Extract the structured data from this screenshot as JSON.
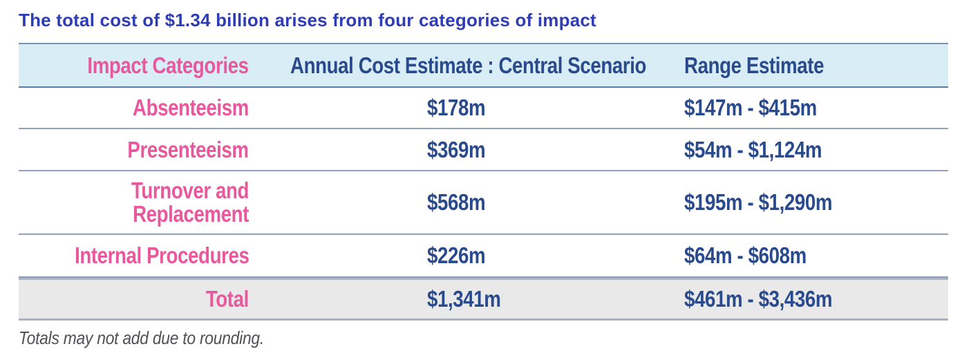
{
  "title": "The total cost of $1.34 billion arises from four categories of impact",
  "chart_data": {
    "type": "table",
    "title": "The total cost of $1.34 billion arises from four categories of impact",
    "columns": [
      "Impact Categories",
      "Annual Cost Estimate : Central Scenario",
      "Range Estimate"
    ],
    "rows": [
      [
        "Absenteeism",
        "$178m",
        "$147m - $415m"
      ],
      [
        "Presenteeism",
        "$369m",
        "$54m - $1,124m"
      ],
      [
        "Turnover and Replacement",
        "$568m",
        "$195m - $1,290m"
      ],
      [
        "Internal Procedures",
        "$226m",
        "$64m - $608m"
      ],
      [
        "Total",
        "$1,341m",
        "$461m - $3,436m"
      ]
    ],
    "total_central": "$1,341m",
    "total_range": "$461m - $3,436m",
    "footnote": "Totals may not add due to rounding."
  },
  "colors": {
    "title_blue": "#2e3cb6",
    "category_pink": "#e8589d",
    "value_navy": "#2a4a8e",
    "header_band_bg": "#d9edf7",
    "total_row_bg": "#e9e9ea",
    "rule_line": "#93a0ba",
    "footnote_gray": "#4d5156"
  }
}
